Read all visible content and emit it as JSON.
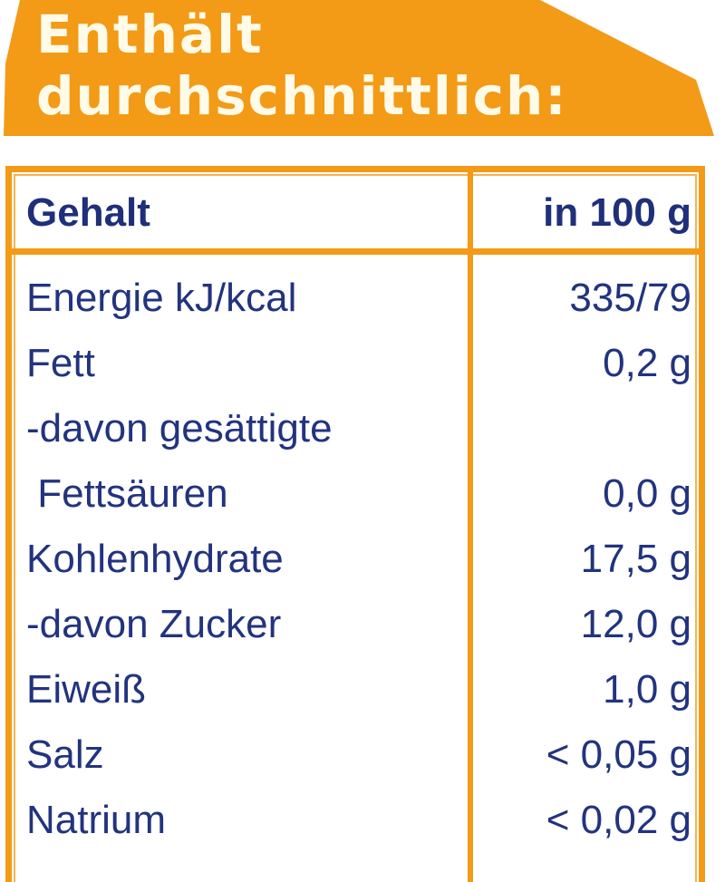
{
  "banner": {
    "line1": "Enthält",
    "line2": "durchschnittlich:",
    "color": "#f39a16"
  },
  "table": {
    "header": {
      "name": "Gehalt",
      "value": "in 100 g"
    },
    "rows": [
      {
        "name": "Energie kJ/kcal",
        "value": "335/79"
      },
      {
        "name": "Fett",
        "value": "0,2 g"
      },
      {
        "name": "-davon gesättigte",
        "value": ""
      },
      {
        "name": " Fettsäuren",
        "value": "0,0 g"
      },
      {
        "name": "Kohlenhydrate",
        "value": "17,5 g"
      },
      {
        "name": "-davon Zucker",
        "value": "12,0 g"
      },
      {
        "name": "Eiweiß",
        "value": "1,0 g"
      },
      {
        "name": "Salz",
        "value": "< 0,05 g"
      },
      {
        "name": "Natrium",
        "value": "< 0,02 g"
      }
    ]
  }
}
